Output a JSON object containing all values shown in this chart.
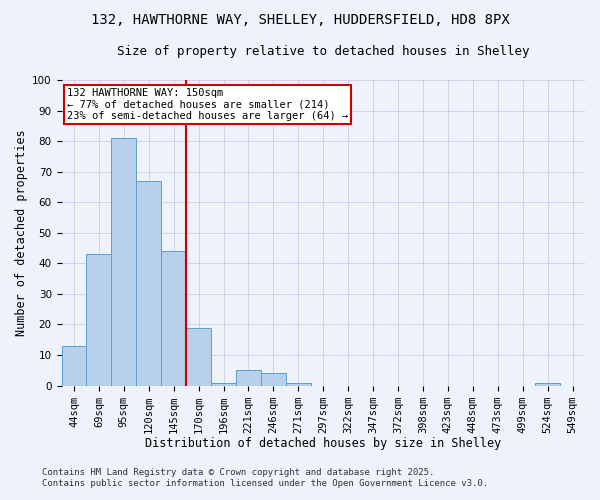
{
  "title_line1": "132, HAWTHORNE WAY, SHELLEY, HUDDERSFIELD, HD8 8PX",
  "title_line2": "Size of property relative to detached houses in Shelley",
  "xlabel": "Distribution of detached houses by size in Shelley",
  "ylabel": "Number of detached properties",
  "bar_values": [
    13,
    43,
    81,
    67,
    44,
    19,
    1,
    5,
    4,
    1,
    0,
    0,
    0,
    0,
    0,
    0,
    0,
    0,
    0,
    1,
    0
  ],
  "bin_labels": [
    "44sqm",
    "69sqm",
    "95sqm",
    "120sqm",
    "145sqm",
    "170sqm",
    "196sqm",
    "221sqm",
    "246sqm",
    "271sqm",
    "297sqm",
    "322sqm",
    "347sqm",
    "372sqm",
    "398sqm",
    "423sqm",
    "448sqm",
    "473sqm",
    "499sqm",
    "524sqm",
    "549sqm"
  ],
  "bar_color": "#b8d0ea",
  "bar_edge_color": "#5a9fd4",
  "bar_width": 1.0,
  "ylim": [
    0,
    100
  ],
  "yticks": [
    0,
    10,
    20,
    30,
    40,
    50,
    60,
    70,
    80,
    90,
    100
  ],
  "red_line_x": 4.5,
  "red_line_color": "#cc0000",
  "annotation_text": "132 HAWTHORNE WAY: 150sqm\n← 77% of detached houses are smaller (214)\n23% of semi-detached houses are larger (64) →",
  "annotation_box_color": "#ffffff",
  "annotation_box_edge_color": "#cc0000",
  "footnote_line1": "Contains HM Land Registry data © Crown copyright and database right 2025.",
  "footnote_line2": "Contains public sector information licensed under the Open Government Licence v3.0.",
  "background_color": "#eef2fb",
  "grid_color": "#c8d0e8",
  "title_fontsize": 10,
  "subtitle_fontsize": 9,
  "axis_label_fontsize": 8.5,
  "tick_fontsize": 7.5,
  "annotation_fontsize": 7.5,
  "footnote_fontsize": 6.5
}
